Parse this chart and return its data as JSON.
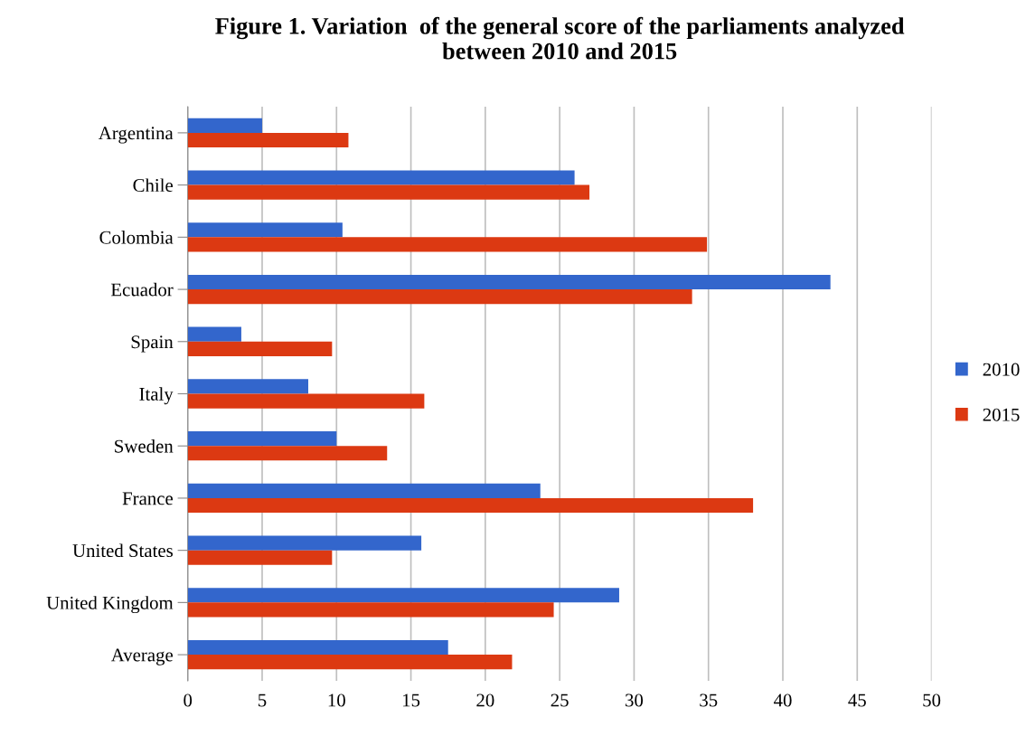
{
  "chart_data": {
    "type": "bar",
    "orientation": "horizontal",
    "title": "Figure 1. Variation  of the general score of the parliaments analyzed\nbetween 2010 and 2015",
    "categories": [
      "Argentina",
      "Chile",
      "Colombia",
      "Ecuador",
      "Spain",
      "Italy",
      "Sweden",
      "France",
      "United States",
      "United Kingdom",
      "Average"
    ],
    "series": [
      {
        "name": "2010",
        "color": "#3366cc",
        "values": [
          5.0,
          26.0,
          10.4,
          43.2,
          3.6,
          8.1,
          10.0,
          23.7,
          15.7,
          29.0,
          17.5
        ]
      },
      {
        "name": "2015",
        "color": "#dc3912",
        "values": [
          10.8,
          27.0,
          34.9,
          33.9,
          9.7,
          15.9,
          13.4,
          38.0,
          9.7,
          24.6,
          21.8
        ]
      }
    ],
    "xlim": [
      0,
      50
    ],
    "xticks": [
      0,
      5,
      10,
      15,
      20,
      25,
      30,
      35,
      40,
      45,
      50
    ],
    "grid": "x",
    "legend": "right"
  }
}
